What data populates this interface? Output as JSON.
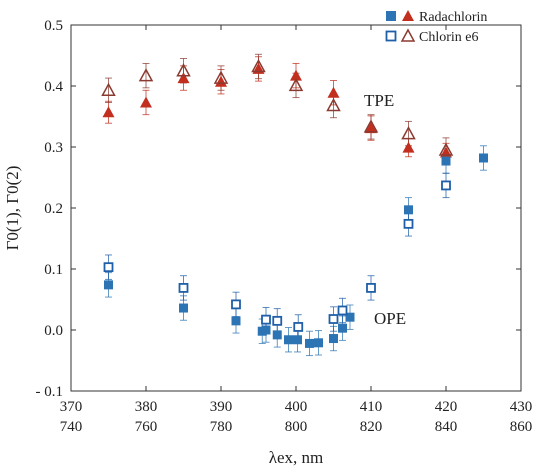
{
  "chart_data": {
    "type": "scatter",
    "xlabel": "λex, nm",
    "ylabel": "Γ0(1), Γ0(2)",
    "x_top_ticks": [
      "370",
      "380",
      "390",
      "400",
      "410",
      "420",
      "430"
    ],
    "x_bottom_ticks": [
      "740",
      "760",
      "780",
      "800",
      "820",
      "840",
      "860"
    ],
    "y_ticks": [
      "- 0.1",
      "0.0",
      "0.1",
      "0.2",
      "0.3",
      "0.4",
      "0.5"
    ],
    "xlim": [
      370,
      430
    ],
    "ylim": [
      -0.1,
      0.5
    ],
    "annotations": [
      {
        "text": "TPE",
        "x": 409.5,
        "y": 0.375,
        "color": "#a8392a"
      },
      {
        "text": "OPE",
        "x": 409.5,
        "y": 0.023,
        "color": "#2e76b4"
      }
    ],
    "legend": {
      "position": "top-right",
      "entries": [
        "Radachlorin",
        "Chlorin e6"
      ]
    },
    "series": [
      {
        "name": "Radachlorin",
        "group": "TPE",
        "marker": "filled-triangle",
        "color": "#c22f1f",
        "points": [
          [
            375,
            0.357,
            0.018
          ],
          [
            380,
            0.373,
            0.02
          ],
          [
            385,
            0.413,
            0.02
          ],
          [
            390,
            0.407,
            0.02
          ],
          [
            395,
            0.428,
            0.02
          ],
          [
            400,
            0.417,
            0.02
          ],
          [
            405,
            0.389,
            0.02
          ],
          [
            410,
            0.331,
            0.02
          ],
          [
            415,
            0.299,
            0.015
          ],
          [
            420,
            0.291,
            0.015
          ]
        ]
      },
      {
        "name": "Chlorin e6",
        "group": "TPE",
        "marker": "open-triangle",
        "color": "#8a3a30",
        "points": [
          [
            375,
            0.393,
            0.02
          ],
          [
            380,
            0.417,
            0.02
          ],
          [
            385,
            0.425,
            0.02
          ],
          [
            390,
            0.413,
            0.02
          ],
          [
            395,
            0.432,
            0.02
          ],
          [
            400,
            0.401,
            0.02
          ],
          [
            405,
            0.368,
            0.02
          ],
          [
            410,
            0.333,
            0.02
          ],
          [
            415,
            0.322,
            0.02
          ],
          [
            420,
            0.295,
            0.02
          ]
        ]
      },
      {
        "name": "Radachlorin",
        "group": "OPE",
        "marker": "filled-square",
        "color": "#2c74b3",
        "points": [
          [
            375,
            0.074,
            0.02
          ],
          [
            385,
            0.036,
            0.02
          ],
          [
            392,
            0.015,
            0.02
          ],
          [
            395.5,
            -0.002,
            0.02
          ],
          [
            396,
            0.0,
            0.02
          ],
          [
            397.5,
            -0.008,
            0.02
          ],
          [
            399,
            -0.016,
            0.02
          ],
          [
            400.2,
            -0.016,
            0.02
          ],
          [
            401.8,
            -0.022,
            0.02
          ],
          [
            403,
            -0.021,
            0.02
          ],
          [
            405,
            -0.014,
            0.02
          ],
          [
            406.2,
            0.003,
            0.02
          ],
          [
            407.2,
            0.021,
            0.02
          ],
          [
            415,
            0.197,
            0.02
          ],
          [
            420,
            0.277,
            0.02
          ],
          [
            425,
            0.282,
            0.02
          ]
        ]
      },
      {
        "name": "Chlorin e6",
        "group": "OPE",
        "marker": "open-square",
        "color": "#1f5fa8",
        "points": [
          [
            375,
            0.103,
            0.02
          ],
          [
            385,
            0.069,
            0.02
          ],
          [
            392,
            0.042,
            0.02
          ],
          [
            396,
            0.017,
            0.02
          ],
          [
            397.5,
            0.015,
            0.02
          ],
          [
            400.3,
            0.005,
            0.02
          ],
          [
            405,
            0.018,
            0.02
          ],
          [
            406.2,
            0.032,
            0.02
          ],
          [
            410,
            0.069,
            0.02
          ],
          [
            415,
            0.174,
            0.02
          ],
          [
            420,
            0.237,
            0.02
          ]
        ]
      }
    ]
  }
}
